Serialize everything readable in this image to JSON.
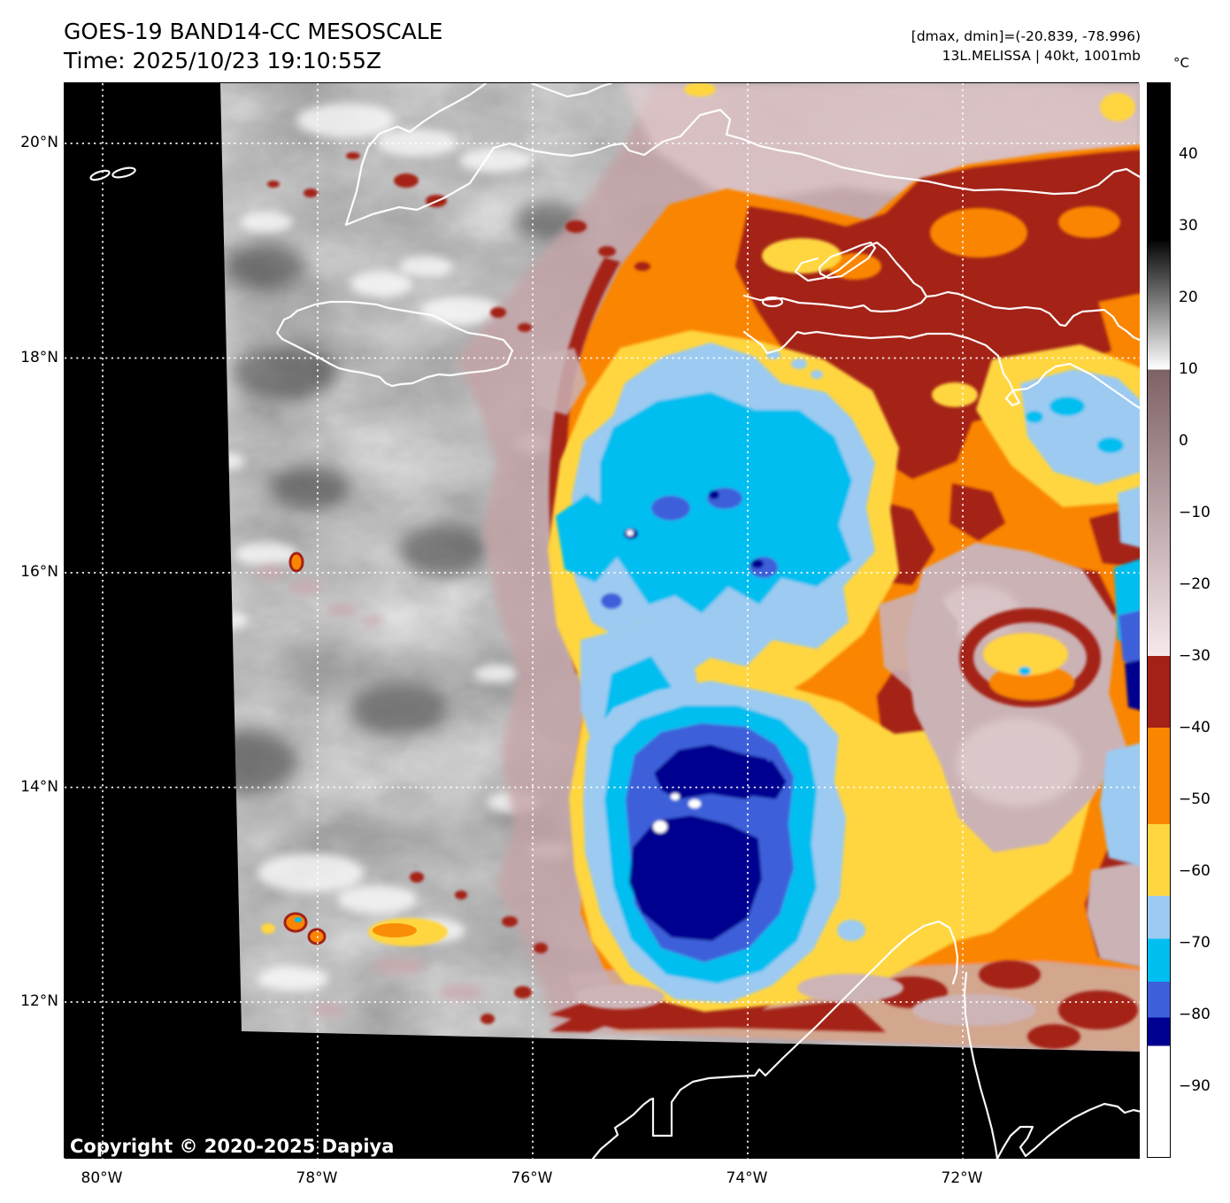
{
  "header": {
    "title": "GOES-19 BAND14-CC MESOSCALE",
    "time_line": "Time: 2025/10/23 19:10:55Z"
  },
  "annotations": {
    "range_line": "[dmax, dmin]=(-20.839, -78.996)",
    "storm_line": "13L.MELISSA | 40kt, 1001mb"
  },
  "map": {
    "copyright": "Copyright © 2020-2025 Dapiya"
  },
  "axes": {
    "lat_ticks": [
      {
        "label": "20°N",
        "deg": 20
      },
      {
        "label": "18°N",
        "deg": 18
      },
      {
        "label": "16°N",
        "deg": 16
      },
      {
        "label": "14°N",
        "deg": 14
      },
      {
        "label": "12°N",
        "deg": 12
      }
    ],
    "lon_ticks": [
      {
        "label": "80°W",
        "deg": 80
      },
      {
        "label": "78°W",
        "deg": 78
      },
      {
        "label": "76°W",
        "deg": 76
      },
      {
        "label": "74°W",
        "deg": 74
      },
      {
        "label": "72°W",
        "deg": 72
      }
    ]
  },
  "colorbar": {
    "unit": "°C",
    "top_value": 50,
    "bottom_value": -100,
    "ticks": [
      {
        "label": "40",
        "value": 40
      },
      {
        "label": "30",
        "value": 30
      },
      {
        "label": "20",
        "value": 20
      },
      {
        "label": "10",
        "value": 10
      },
      {
        "label": "0",
        "value": 0
      },
      {
        "label": "−10",
        "value": -10
      },
      {
        "label": "−20",
        "value": -20
      },
      {
        "label": "−30",
        "value": -30
      },
      {
        "label": "−40",
        "value": -40
      },
      {
        "label": "−50",
        "value": -50
      },
      {
        "label": "−60",
        "value": -60
      },
      {
        "label": "−70",
        "value": -70
      },
      {
        "label": "−80",
        "value": -80
      },
      {
        "label": "−90",
        "value": -90
      }
    ],
    "segments": [
      {
        "from": 50,
        "to": 28,
        "colors": [
          "#000000"
        ]
      },
      {
        "from": 28,
        "to": 10,
        "colors": [
          "#050505",
          "#ffffff"
        ]
      },
      {
        "from": 10,
        "to": -30,
        "colors": [
          "#7e6165",
          "#f7e9eb"
        ]
      },
      {
        "from": -30,
        "to": -40,
        "colors": [
          "#a42118"
        ]
      },
      {
        "from": -40,
        "to": -53.5,
        "colors": [
          "#fa8500"
        ]
      },
      {
        "from": -53.5,
        "to": -63.5,
        "colors": [
          "#ffd640"
        ]
      },
      {
        "from": -63.5,
        "to": -69.5,
        "colors": [
          "#9ccaf1"
        ]
      },
      {
        "from": -69.5,
        "to": -75.5,
        "colors": [
          "#00bef0"
        ]
      },
      {
        "from": -75.5,
        "to": -80.5,
        "colors": [
          "#3c60da"
        ]
      },
      {
        "from": -80.5,
        "to": -84.5,
        "colors": [
          "#000090"
        ]
      },
      {
        "from": -84.5,
        "to": -100,
        "colors": [
          "#ffffff"
        ]
      }
    ]
  },
  "colors": {
    "background": "#000000",
    "orange": "#fa8500",
    "dark_red": "#a42118",
    "yellow": "#ffd640",
    "light_blue": "#9ccaf1",
    "cyan": "#00bef0",
    "royal_blue": "#3c60da",
    "navy": "#000090",
    "white": "#ffffff",
    "mauve": "#c4a2a6",
    "mauve_light": "#e8d2d4",
    "coastline": "#ffffff",
    "gridline": "#ffffff"
  }
}
